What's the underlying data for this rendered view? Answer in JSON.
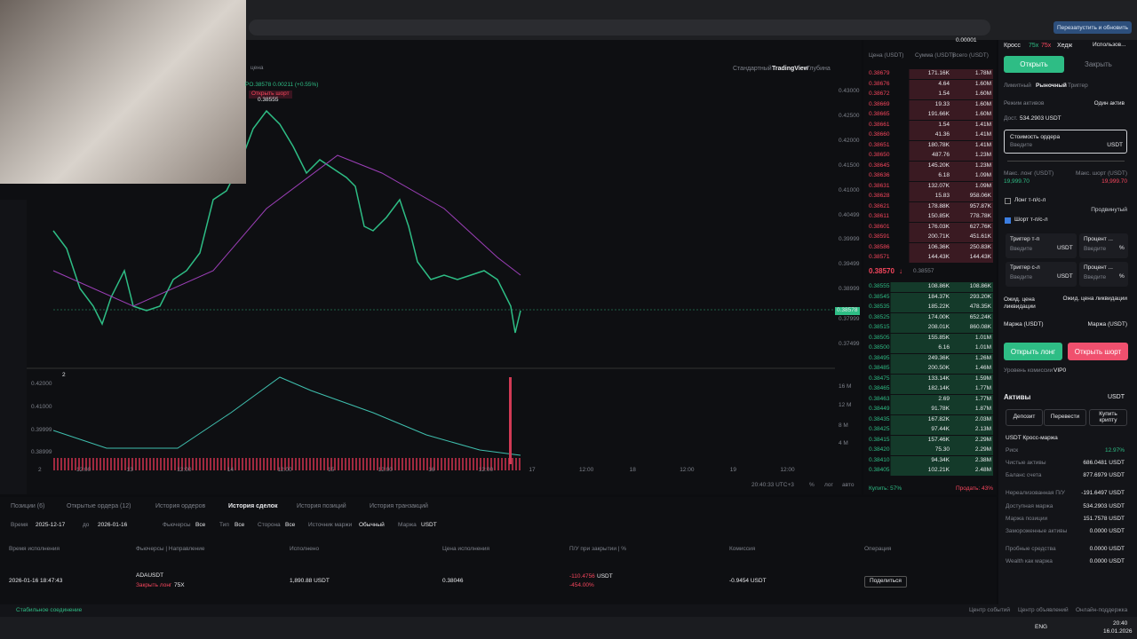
{
  "browser": {
    "restart": "Перезапустить и обновить"
  },
  "chart": {
    "toolbar": [
      "Стандартный",
      "TradingView",
      "Глубина"
    ],
    "price_label": "цена",
    "ohlc": "PO.38578  0.00211 (+0.55%)",
    "order_tag": "Открыть шорт",
    "order_price": "0.38555",
    "price_axis": [
      "0.43000",
      "0.42500",
      "0.42000",
      "0.41500",
      "0.41000",
      "0.40499",
      "0.39999",
      "0.39499",
      "0.38999",
      "0.38578",
      "0.37999",
      "0.37499"
    ],
    "time_axis": [
      "2",
      "12:00",
      "13",
      "12:00",
      "14",
      "12:00",
      "15",
      "12:00",
      "16",
      "12:00",
      "17",
      "12:00",
      "18",
      "12:00",
      "19",
      "12:00"
    ],
    "volume_pane_index": "2",
    "volume_price_axis": [
      "0.42000",
      "0.41000",
      "0.39999",
      "0.38999"
    ],
    "volume_axis": [
      "16 M",
      "12 M",
      "8 M",
      "4 M"
    ],
    "clock": "20:40:33 UTC+3",
    "scale_buttons": [
      "%",
      "лог",
      "авто"
    ]
  },
  "order_book": {
    "tick": "0.00001",
    "headers": [
      "Цена (USDT)",
      "Сумма (USDT)",
      "Всего (USDT)"
    ],
    "asks": [
      [
        "0.38679",
        "171.16K",
        "1.78M"
      ],
      [
        "0.38676",
        "4.64",
        "1.60M"
      ],
      [
        "0.38672",
        "1.54",
        "1.60M"
      ],
      [
        "0.38669",
        "19.33",
        "1.60M"
      ],
      [
        "0.38665",
        "191.66K",
        "1.60M"
      ],
      [
        "0.38661",
        "1.54",
        "1.41M"
      ],
      [
        "0.38660",
        "41.36",
        "1.41M"
      ],
      [
        "0.38651",
        "180.78K",
        "1.41M"
      ],
      [
        "0.38650",
        "487.76",
        "1.23M"
      ],
      [
        "0.38645",
        "145.20K",
        "1.23M"
      ],
      [
        "0.38636",
        "6.18",
        "1.09M"
      ],
      [
        "0.38631",
        "132.07K",
        "1.09M"
      ],
      [
        "0.38628",
        "15.83",
        "958.06K"
      ],
      [
        "0.38621",
        "178.88K",
        "957.87K"
      ],
      [
        "0.38611",
        "150.85K",
        "778.78K"
      ],
      [
        "0.38601",
        "176.03K",
        "627.76K"
      ],
      [
        "0.38591",
        "200.71K",
        "451.61K"
      ],
      [
        "0.38586",
        "106.36K",
        "250.83K"
      ],
      [
        "0.38571",
        "144.43K",
        "144.43K"
      ]
    ],
    "last_price": "0.38570",
    "arrow": "↓",
    "mark_price": "0.38557",
    "bids": [
      [
        "0.38555",
        "108.86K",
        "108.86K"
      ],
      [
        "0.38545",
        "184.37K",
        "293.20K"
      ],
      [
        "0.38535",
        "185.22K",
        "478.35K"
      ],
      [
        "0.38525",
        "174.00K",
        "652.24K"
      ],
      [
        "0.38515",
        "208.01K",
        "860.08K"
      ],
      [
        "0.38505",
        "155.85K",
        "1.01M"
      ],
      [
        "0.38500",
        "6.16",
        "1.01M"
      ],
      [
        "0.38495",
        "249.36K",
        "1.26M"
      ],
      [
        "0.38485",
        "200.50K",
        "1.46M"
      ],
      [
        "0.38475",
        "133.14K",
        "1.59M"
      ],
      [
        "0.38465",
        "182.14K",
        "1.77M"
      ],
      [
        "0.38463",
        "2.69",
        "1.77M"
      ],
      [
        "0.38449",
        "91.78K",
        "1.87M"
      ],
      [
        "0.38435",
        "167.82K",
        "2.03M"
      ],
      [
        "0.38425",
        "97.44K",
        "2.13M"
      ],
      [
        "0.38415",
        "157.46K",
        "2.29M"
      ],
      [
        "0.38420",
        "75.30",
        "2.29M"
      ],
      [
        "0.38410",
        "94.34K",
        "2.38M"
      ],
      [
        "0.38405",
        "102.21K",
        "2.48M"
      ]
    ],
    "buy_ratio": "Купить: 57%",
    "sell_ratio": "Продать: 43%"
  },
  "order_panel": {
    "margin_mode": "Кросс",
    "leverage_long": "75x",
    "leverage_short": "75x",
    "position_mode": "Хедж",
    "usage": "Использов...",
    "tab_open": "Открыть",
    "tab_close": "Закрыть",
    "order_types": [
      "Лимитный",
      "Рыночный",
      "Триггер"
    ],
    "asset_mode_label": "Режим активов",
    "asset_mode": "Один актив",
    "available_label": "Дост.",
    "available": "534.2903 USDT",
    "order_value_label": "Стоимость ордера",
    "placeholder": "Введите",
    "unit": "USDT",
    "max_long_label": "Макс. лонг (USDT)",
    "max_long": "19,999.70",
    "max_short_label": "Макс. шорт (USDT)",
    "max_short": "19,999.70",
    "long_tpsl": "Лонг т-п/с-л",
    "advanced": "Продвинутый",
    "short_tpsl": "Шорт т-п/с-л",
    "tp_trigger": "Триггер т-п",
    "sl_trigger": "Триггер с-л",
    "percent": "Процент ...",
    "percent_unit": "%",
    "liq_label": "Ожид. цена ликвидации",
    "margin_label": "Маржа (USDT)",
    "open_long": "Открыть лонг",
    "open_short": "Открыть шорт",
    "fee_label": "Уровень комиссии",
    "fee_level": "VIP0"
  },
  "assets": {
    "title": "Активы",
    "currency": "USDT",
    "buttons": [
      "Депозит",
      "Перевести",
      "Купить крипту"
    ],
    "account": "USDT Кросс-маржа",
    "rows": [
      [
        "Риск",
        "12.97%"
      ],
      [
        "Чистые активы",
        "686.0481 USDT"
      ],
      [
        "Баланс счета",
        "877.6979 USDT"
      ],
      [
        "Нереализованная П/У",
        "-191.6497 USDT"
      ],
      [
        "Доступная маржа",
        "534.2903 USDT"
      ],
      [
        "Маржа позиции",
        "151.7578 USDT"
      ],
      [
        "Замороженные активы",
        "0.0000 USDT"
      ],
      [
        "Пробные средства",
        "0.0000 USDT"
      ],
      [
        "Wealth как маржа",
        "0.0000 USDT"
      ]
    ]
  },
  "bottom": {
    "tabs": [
      "Позиции (6)",
      "Открытые ордера (12)",
      "История ордеров",
      "История сделок",
      "История позиций",
      "История транзакций"
    ],
    "time_label": "Время",
    "date_from": "2025-12-17",
    "date_to_label": "до",
    "date_to": "2026-01-16",
    "filters": [
      [
        "Фьючерсы",
        "Все"
      ],
      [
        "Тип",
        "Все"
      ],
      [
        "Сторона",
        "Все"
      ],
      [
        "Источник маржи",
        "Обычный"
      ],
      [
        "Маржа",
        "USDT"
      ]
    ],
    "headers": [
      "Время исполнения",
      "Фьючерсы | Направление",
      "Исполнено",
      "Цена исполнения",
      "П/У при закрытии | %",
      "Комиссия",
      "Операция"
    ],
    "row": {
      "time": "2026-01-16 18:47:43",
      "symbol": "ADAUSDT",
      "side": "Закрыть лонг",
      "leverage": "75X",
      "filled": "1,890.88 USDT",
      "price": "0.38046",
      "pnl": "-110.4756",
      "pnl_unit": "USDT",
      "pnl_pct": "-454.00%",
      "fee": "-0.9454 USDT",
      "action": "Поделиться"
    }
  },
  "status": {
    "connection": "Стабильное соединение",
    "links": [
      "Центр событий",
      "Центр объявлений",
      "Онлайн-поддержка"
    ]
  },
  "taskbar": {
    "lang": "ENG",
    "time": "20:40",
    "date": "16.01.2026"
  }
}
